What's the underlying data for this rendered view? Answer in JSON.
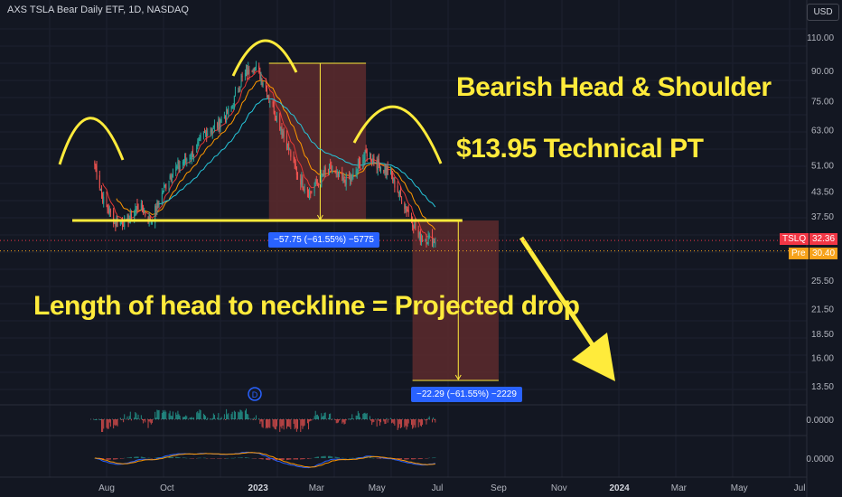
{
  "header": {
    "title": "AXS TSLA Bear Daily ETF, 1D, NASDAQ",
    "currency": "USD"
  },
  "colors": {
    "background": "#131722",
    "annotation": "#ffeb3b",
    "up": "#26a69a",
    "down": "#ef5350",
    "measure_fill": "#5d2a2d",
    "measure_label": "#2962ff",
    "last_price": "#f23645",
    "premarket": "#f7a21b"
  },
  "annotations": {
    "line1": "Bearish Head & Shoulder",
    "line2": "$13.95 Technical PT",
    "line3": "Length of head to neckline = Projected drop"
  },
  "measurements": {
    "head": "−57.75 (−61.55%) −5775",
    "projection": "−22.29 (−61.55%) −2229"
  },
  "price_tags": {
    "symbol": "TSLQ",
    "last": "32.36",
    "pre_label": "Pre",
    "pre_value": "30.40"
  },
  "event_marker": "D",
  "chart_data": {
    "type": "candlestick",
    "title": "AXS TSLA Bear Daily ETF, 1D, NASDAQ",
    "y_scale": "log",
    "ylim": [
      12,
      120
    ],
    "y_ticks": [
      "110.00",
      "90.00",
      "75.00",
      "63.00",
      "51.00",
      "43.50",
      "37.50",
      "25.50",
      "21.50",
      "18.50",
      "16.00",
      "13.50"
    ],
    "x_ticks": [
      "Aug",
      "Oct",
      "2023",
      "Mar",
      "May",
      "Jul",
      "Sep",
      "Nov",
      "2024",
      "Mar",
      "May",
      "Jul"
    ],
    "indicator_ticks": [
      "0.0000",
      "0.0000"
    ],
    "close_path": [
      {
        "date": "2022-07-20",
        "close": 51
      },
      {
        "date": "2022-07-29",
        "close": 41
      },
      {
        "date": "2022-08-10",
        "close": 36
      },
      {
        "date": "2022-08-22",
        "close": 36.5
      },
      {
        "date": "2022-09-02",
        "close": 40
      },
      {
        "date": "2022-09-15",
        "close": 36.5
      },
      {
        "date": "2022-09-23",
        "close": 41
      },
      {
        "date": "2022-10-04",
        "close": 48
      },
      {
        "date": "2022-10-17",
        "close": 52
      },
      {
        "date": "2022-10-28",
        "close": 55
      },
      {
        "date": "2022-11-09",
        "close": 62
      },
      {
        "date": "2022-11-22",
        "close": 65
      },
      {
        "date": "2022-12-05",
        "close": 72
      },
      {
        "date": "2022-12-15",
        "close": 85
      },
      {
        "date": "2022-12-27",
        "close": 93
      },
      {
        "date": "2023-01-05",
        "close": 86
      },
      {
        "date": "2023-01-12",
        "close": 77
      },
      {
        "date": "2023-01-20",
        "close": 68
      },
      {
        "date": "2023-01-30",
        "close": 58
      },
      {
        "date": "2023-02-10",
        "close": 48
      },
      {
        "date": "2023-02-22",
        "close": 43
      },
      {
        "date": "2023-03-02",
        "close": 46
      },
      {
        "date": "2023-03-15",
        "close": 50
      },
      {
        "date": "2023-03-27",
        "close": 46
      },
      {
        "date": "2023-04-06",
        "close": 47
      },
      {
        "date": "2023-04-17",
        "close": 53
      },
      {
        "date": "2023-04-21",
        "close": 55
      },
      {
        "date": "2023-05-03",
        "close": 51
      },
      {
        "date": "2023-05-15",
        "close": 48
      },
      {
        "date": "2023-05-25",
        "close": 42
      },
      {
        "date": "2023-06-05",
        "close": 37
      },
      {
        "date": "2023-06-12",
        "close": 33
      },
      {
        "date": "2023-06-20",
        "close": 32.9
      },
      {
        "date": "2023-06-29",
        "close": 32.36
      }
    ],
    "neckline": 36.5,
    "head_top": 94,
    "target": 13.95,
    "last_price": 32.36,
    "premarket_price": 30.4
  }
}
